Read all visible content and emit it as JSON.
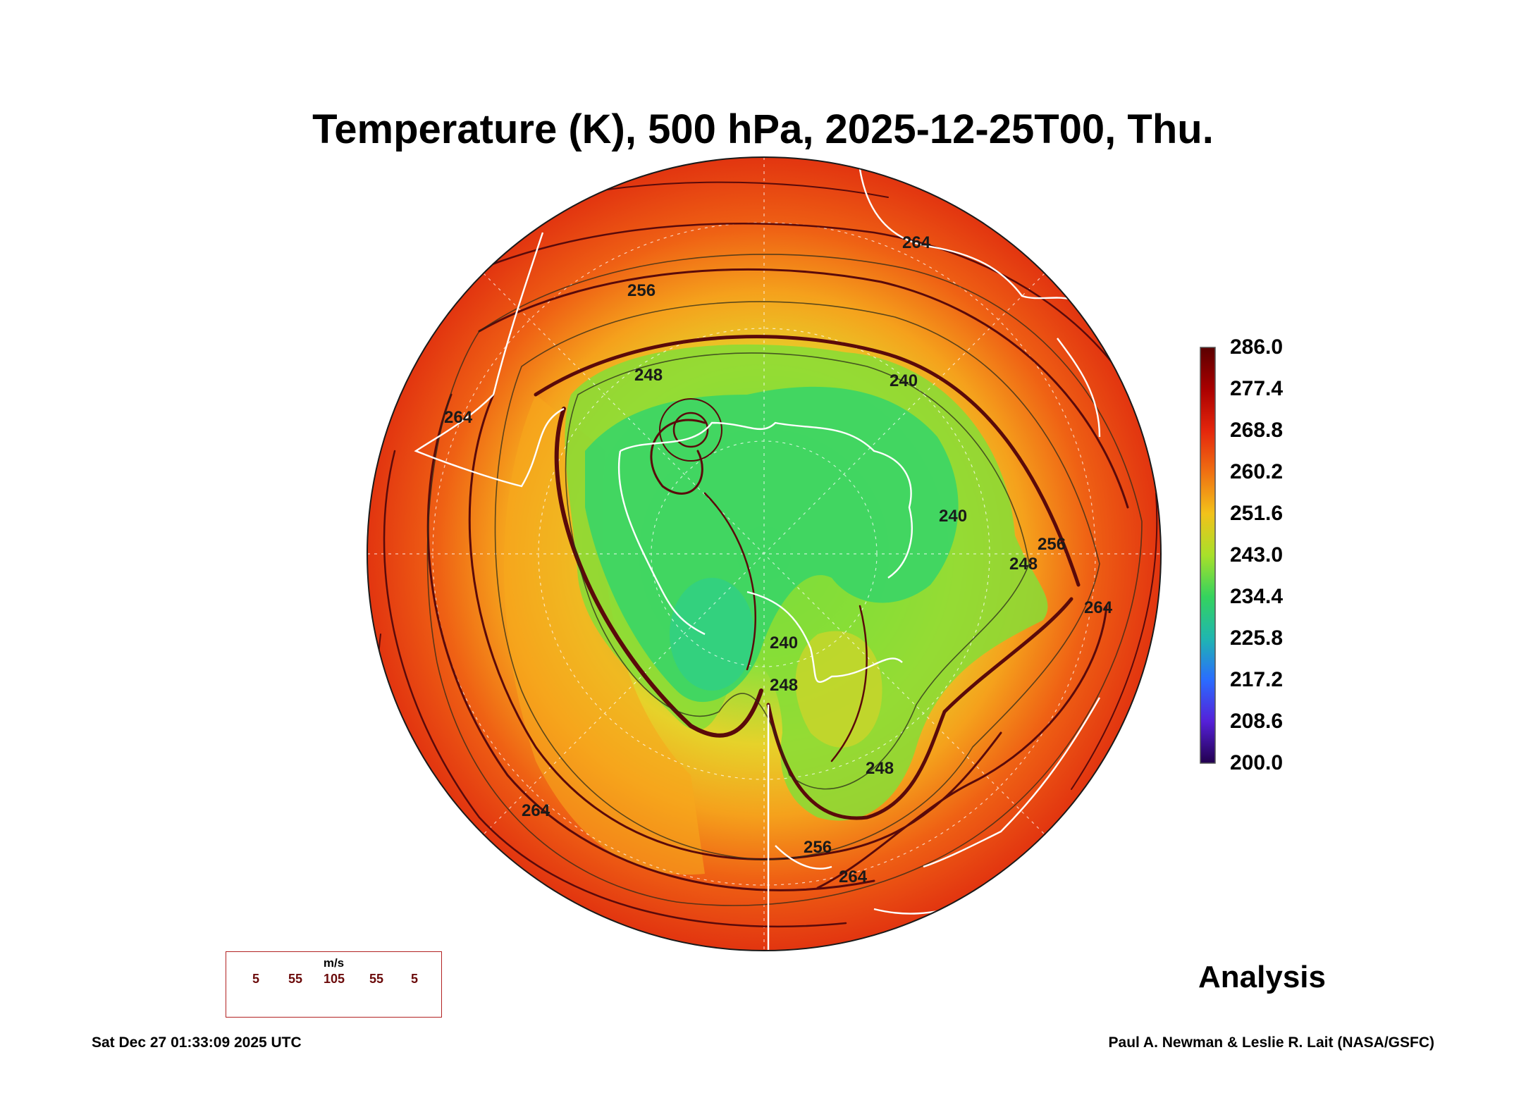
{
  "title": "Temperature (K), 500 hPa, 2025-12-25T00, Thu.",
  "colorbar": {
    "ticks": [
      "286.0",
      "277.4",
      "268.8",
      "260.2",
      "251.6",
      "243.0",
      "234.4",
      "225.8",
      "217.2",
      "208.6",
      "200.0"
    ],
    "colors": [
      "#6b0000",
      "#b30000",
      "#e8300e",
      "#f07a10",
      "#f2c21a",
      "#a6e02a",
      "#35d35c",
      "#22b3a6",
      "#2a6cff",
      "#5a20d8",
      "#2a0060"
    ]
  },
  "contour_labels": [
    "256",
    "264",
    "248",
    "240",
    "240",
    "264",
    "248",
    "256",
    "264",
    "240",
    "248",
    "248",
    "264",
    "264",
    "256"
  ],
  "wind_legend": {
    "unit": "m/s",
    "values": [
      "5",
      "55",
      "105",
      "55",
      "5"
    ]
  },
  "product_label": "Analysis",
  "timestamp": "Sat Dec 27 01:33:09 2025 UTC",
  "credit": "Paul A. Newman & Leslie R. Lait (NASA/GSFC)",
  "colors": {
    "warm": "#ea3a12",
    "orange": "#f4911a",
    "yellow": "#f1c420",
    "green": "#9ee03a",
    "cold": "#2fd56a",
    "streamline": "#5a0a0a",
    "coast": "#ffffff"
  }
}
